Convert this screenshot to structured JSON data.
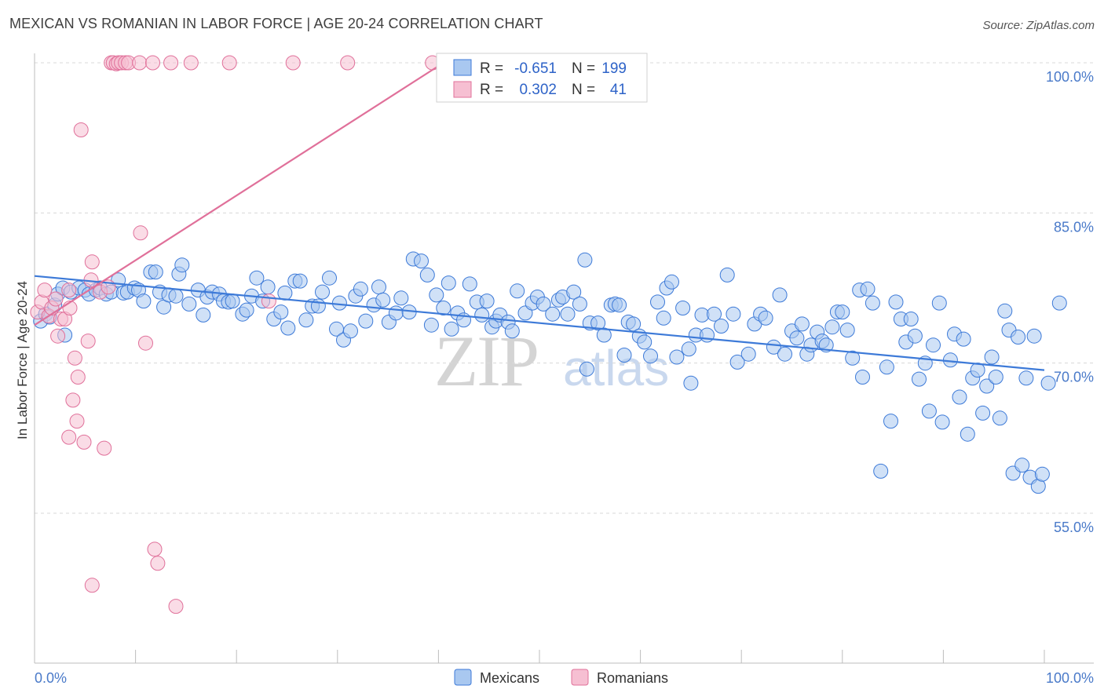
{
  "title": "MEXICAN VS ROMANIAN IN LABOR FORCE | AGE 20-24 CORRELATION CHART",
  "source": "Source: ZipAtlas.com",
  "watermark": {
    "zip": "ZIP",
    "atlas": "atlas"
  },
  "colors": {
    "mexicans": "#3d7ad8",
    "mexicans_fill": "#a9c8f0",
    "romanians": "#e0709a",
    "romanians_fill": "#f6bfd2",
    "grid": "#d8d8d8",
    "tick_text": "#4a7ac9"
  },
  "legend": {
    "rows": [
      {
        "r_label": "R =",
        "r_value": "-0.651",
        "n_label": "N =",
        "n_value": "199"
      },
      {
        "r_label": "R =",
        "r_value": "0.302",
        "n_label": "N =",
        "n_value": "41"
      }
    ]
  },
  "chart_data": {
    "type": "scatter",
    "title": "MEXICAN VS ROMANIAN IN LABOR FORCE | AGE 20-24 CORRELATION CHART",
    "xlabel": "",
    "ylabel": "In Labor Force | Age 20-24",
    "xlim": [
      0,
      100
    ],
    "ylim": [
      40,
      101.5
    ],
    "x_tick_labels": [
      "0.0%",
      "100.0%"
    ],
    "y_ticks": [
      55,
      70,
      85,
      100
    ],
    "y_tick_labels": [
      "55.0%",
      "70.0%",
      "85.0%",
      "100.0%"
    ],
    "legend_entries": [
      "Mexicans",
      "Romanians"
    ],
    "series": [
      {
        "name": "Mexicans",
        "R": -0.651,
        "N": 199,
        "trend": {
          "x": [
            0,
            100
          ],
          "y": [
            78.7,
            69.3
          ]
        },
        "points": [
          [
            0.6,
            74.2
          ],
          [
            1.1,
            74.9
          ],
          [
            1.5,
            74.6
          ],
          [
            2.0,
            75.8
          ],
          [
            2.3,
            76.9
          ],
          [
            2.8,
            77.5
          ],
          [
            3.0,
            72.8
          ],
          [
            3.6,
            77.1
          ],
          [
            4.4,
            77.5
          ],
          [
            5.0,
            77.3
          ],
          [
            5.4,
            76.9
          ],
          [
            6.1,
            77.3
          ],
          [
            6.5,
            77.5
          ],
          [
            7.1,
            76.9
          ],
          [
            7.6,
            77.1
          ],
          [
            8.3,
            78.3
          ],
          [
            8.8,
            77.0
          ],
          [
            9.2,
            77.1
          ],
          [
            9.9,
            77.5
          ],
          [
            10.3,
            77.3
          ],
          [
            10.8,
            76.2
          ],
          [
            11.5,
            79.1
          ],
          [
            12.0,
            79.1
          ],
          [
            12.4,
            77.1
          ],
          [
            12.8,
            75.6
          ],
          [
            13.3,
            76.8
          ],
          [
            14.0,
            76.7
          ],
          [
            14.3,
            78.9
          ],
          [
            14.6,
            79.8
          ],
          [
            15.3,
            75.9
          ],
          [
            16.2,
            77.3
          ],
          [
            16.7,
            74.8
          ],
          [
            17.1,
            76.6
          ],
          [
            17.6,
            77.1
          ],
          [
            18.3,
            76.9
          ],
          [
            18.7,
            76.2
          ],
          [
            19.2,
            76.1
          ],
          [
            19.6,
            76.2
          ],
          [
            20.6,
            74.9
          ],
          [
            21.0,
            75.3
          ],
          [
            21.5,
            76.7
          ],
          [
            22.0,
            78.5
          ],
          [
            22.6,
            76.2
          ],
          [
            23.1,
            77.6
          ],
          [
            23.7,
            74.4
          ],
          [
            24.4,
            75.1
          ],
          [
            24.8,
            77.0
          ],
          [
            25.1,
            73.5
          ],
          [
            25.8,
            78.2
          ],
          [
            26.3,
            78.2
          ],
          [
            26.9,
            74.3
          ],
          [
            27.5,
            75.7
          ],
          [
            28.1,
            75.7
          ],
          [
            28.5,
            77.1
          ],
          [
            29.2,
            78.5
          ],
          [
            29.9,
            73.4
          ],
          [
            30.2,
            76.0
          ],
          [
            30.6,
            72.3
          ],
          [
            31.3,
            73.2
          ],
          [
            31.8,
            76.7
          ],
          [
            32.3,
            77.4
          ],
          [
            32.8,
            74.2
          ],
          [
            33.6,
            75.8
          ],
          [
            34.1,
            77.6
          ],
          [
            34.5,
            76.3
          ],
          [
            35.1,
            74.1
          ],
          [
            35.8,
            75.0
          ],
          [
            36.3,
            76.5
          ],
          [
            37.1,
            75.1
          ],
          [
            37.5,
            80.4
          ],
          [
            38.3,
            80.2
          ],
          [
            38.9,
            78.8
          ],
          [
            39.3,
            73.8
          ],
          [
            39.8,
            76.8
          ],
          [
            40.5,
            75.5
          ],
          [
            41.0,
            78.0
          ],
          [
            41.3,
            73.4
          ],
          [
            41.9,
            75.0
          ],
          [
            42.5,
            74.3
          ],
          [
            43.1,
            77.9
          ],
          [
            43.8,
            76.1
          ],
          [
            44.3,
            74.8
          ],
          [
            44.8,
            76.2
          ],
          [
            45.3,
            73.6
          ],
          [
            45.7,
            74.2
          ],
          [
            46.1,
            74.8
          ],
          [
            46.9,
            74.1
          ],
          [
            47.3,
            73.2
          ],
          [
            47.8,
            77.2
          ],
          [
            48.6,
            75.0
          ],
          [
            49.3,
            76.0
          ],
          [
            49.8,
            76.6
          ],
          [
            50.4,
            75.9
          ],
          [
            51.3,
            74.9
          ],
          [
            51.9,
            76.3
          ],
          [
            52.3,
            76.6
          ],
          [
            52.8,
            74.9
          ],
          [
            53.4,
            77.1
          ],
          [
            54.0,
            75.9
          ],
          [
            54.5,
            80.3
          ],
          [
            55.0,
            74.0
          ],
          [
            54.7,
            69.4
          ],
          [
            55.8,
            74.0
          ],
          [
            56.4,
            72.8
          ],
          [
            57.1,
            75.8
          ],
          [
            57.5,
            75.9
          ],
          [
            57.9,
            75.8
          ],
          [
            58.4,
            70.8
          ],
          [
            58.8,
            74.1
          ],
          [
            59.3,
            73.9
          ],
          [
            59.9,
            72.7
          ],
          [
            60.4,
            72.1
          ],
          [
            61.0,
            70.7
          ],
          [
            61.7,
            76.1
          ],
          [
            62.3,
            74.5
          ],
          [
            62.6,
            77.5
          ],
          [
            63.1,
            78.1
          ],
          [
            63.6,
            70.6
          ],
          [
            64.2,
            75.5
          ],
          [
            64.8,
            71.4
          ],
          [
            65.0,
            68.0
          ],
          [
            65.5,
            72.8
          ],
          [
            66.1,
            74.8
          ],
          [
            66.6,
            72.8
          ],
          [
            67.3,
            74.9
          ],
          [
            68.0,
            73.7
          ],
          [
            68.6,
            78.8
          ],
          [
            69.2,
            74.9
          ],
          [
            69.6,
            70.1
          ],
          [
            70.7,
            70.9
          ],
          [
            71.3,
            73.9
          ],
          [
            71.9,
            74.9
          ],
          [
            72.4,
            74.5
          ],
          [
            73.2,
            71.6
          ],
          [
            73.8,
            76.8
          ],
          [
            74.3,
            70.9
          ],
          [
            75.0,
            73.2
          ],
          [
            75.5,
            72.5
          ],
          [
            76.0,
            73.9
          ],
          [
            76.5,
            70.9
          ],
          [
            76.9,
            71.8
          ],
          [
            77.5,
            73.1
          ],
          [
            78.0,
            72.2
          ],
          [
            78.4,
            71.8
          ],
          [
            79.0,
            73.6
          ],
          [
            79.5,
            75.1
          ],
          [
            80.0,
            75.1
          ],
          [
            80.5,
            73.3
          ],
          [
            81.0,
            70.5
          ],
          [
            81.7,
            77.3
          ],
          [
            82.0,
            68.6
          ],
          [
            82.5,
            77.4
          ],
          [
            83.0,
            76.0
          ],
          [
            83.8,
            59.2
          ],
          [
            84.4,
            69.6
          ],
          [
            84.8,
            64.2
          ],
          [
            85.3,
            76.1
          ],
          [
            85.8,
            74.4
          ],
          [
            86.3,
            72.1
          ],
          [
            86.8,
            74.4
          ],
          [
            87.2,
            72.7
          ],
          [
            87.6,
            68.4
          ],
          [
            88.2,
            70.0
          ],
          [
            88.6,
            65.2
          ],
          [
            89.0,
            71.8
          ],
          [
            89.6,
            76.0
          ],
          [
            89.9,
            64.1
          ],
          [
            90.7,
            70.3
          ],
          [
            91.1,
            72.9
          ],
          [
            91.6,
            66.6
          ],
          [
            92.0,
            72.4
          ],
          [
            92.4,
            62.9
          ],
          [
            92.9,
            68.5
          ],
          [
            93.4,
            69.3
          ],
          [
            93.9,
            65.0
          ],
          [
            94.3,
            67.7
          ],
          [
            94.8,
            70.6
          ],
          [
            95.2,
            68.6
          ],
          [
            95.6,
            64.5
          ],
          [
            96.1,
            75.2
          ],
          [
            96.5,
            73.3
          ],
          [
            96.9,
            59.0
          ],
          [
            97.4,
            72.6
          ],
          [
            97.8,
            59.8
          ],
          [
            98.2,
            68.5
          ],
          [
            98.6,
            58.6
          ],
          [
            99.0,
            72.7
          ],
          [
            99.4,
            57.7
          ],
          [
            99.8,
            58.9
          ],
          [
            100.4,
            68.0
          ],
          [
            101.5,
            76.0
          ]
        ]
      },
      {
        "name": "Romanians",
        "R": 0.302,
        "N": 41,
        "trend": {
          "x": [
            0,
            40.5
          ],
          "y": [
            73.8,
            100.0
          ]
        },
        "points": [
          [
            0.3,
            75.1
          ],
          [
            0.7,
            76.1
          ],
          [
            1.0,
            77.3
          ],
          [
            1.4,
            74.7
          ],
          [
            1.7,
            75.5
          ],
          [
            2.1,
            76.4
          ],
          [
            2.3,
            72.7
          ],
          [
            2.6,
            74.4
          ],
          [
            3.0,
            74.4
          ],
          [
            3.4,
            77.3
          ],
          [
            3.5,
            75.5
          ],
          [
            4.0,
            70.5
          ],
          [
            4.3,
            68.6
          ],
          [
            3.8,
            66.3
          ],
          [
            4.2,
            64.2
          ],
          [
            3.4,
            62.6
          ],
          [
            4.9,
            62.1
          ],
          [
            5.3,
            72.2
          ],
          [
            5.7,
            80.1
          ],
          [
            5.6,
            78.3
          ],
          [
            6.5,
            77.1
          ],
          [
            6.9,
            61.5
          ],
          [
            7.3,
            77.6
          ],
          [
            7.6,
            100.0
          ],
          [
            7.8,
            100.0
          ],
          [
            8.1,
            99.9
          ],
          [
            8.3,
            100.0
          ],
          [
            8.6,
            100.0
          ],
          [
            9.0,
            100.0
          ],
          [
            9.3,
            100.0
          ],
          [
            10.4,
            100.0
          ],
          [
            11.7,
            100.0
          ],
          [
            13.5,
            100.0
          ],
          [
            15.5,
            100.0
          ],
          [
            19.3,
            100.0
          ],
          [
            25.6,
            100.0
          ],
          [
            31.0,
            100.0
          ],
          [
            39.4,
            100.0
          ],
          [
            10.5,
            83.0
          ],
          [
            11.0,
            72.0
          ],
          [
            4.6,
            93.3
          ],
          [
            11.9,
            51.4
          ],
          [
            12.2,
            50.0
          ],
          [
            5.7,
            47.8
          ],
          [
            14.0,
            45.7
          ],
          [
            23.2,
            76.2
          ]
        ]
      }
    ]
  },
  "bottom_legend": {
    "mexicans": "Mexicans",
    "romanians": "Romanians"
  }
}
